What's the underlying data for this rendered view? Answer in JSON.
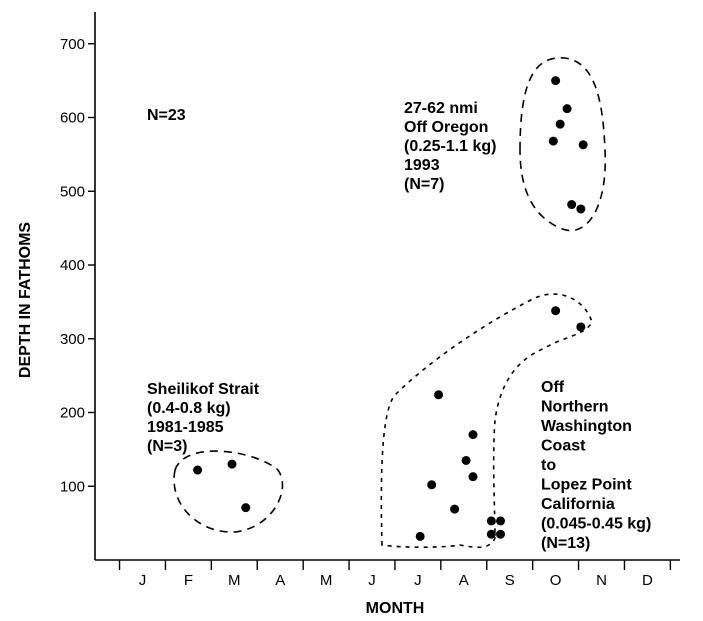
{
  "chart_data": {
    "type": "scatter",
    "title": "",
    "xlabel": "MONTH",
    "ylabel": "DEPTH IN FATHOMS",
    "x_categories": [
      "J",
      "F",
      "M",
      "A",
      "M",
      "J",
      "J",
      "A",
      "S",
      "O",
      "N",
      "D"
    ],
    "ylim": [
      0,
      720
    ],
    "yticks": [
      100,
      200,
      300,
      400,
      500,
      600,
      700
    ],
    "grid": false,
    "legend": "none",
    "count_note": "N=23",
    "series": [
      {
        "label_lines": [
          "Sheilikof Strait",
          "(0.4-0.8 kg)",
          "1981-1985",
          "(N=3)"
        ],
        "points": [
          {
            "month": 2.2,
            "depth": 122
          },
          {
            "month": 2.95,
            "depth": 130
          },
          {
            "month": 3.25,
            "depth": 71
          }
        ]
      },
      {
        "label_lines": [
          "Off",
          "Northern",
          "Washington",
          "Coast",
          "to",
          "Lopez Point",
          "California",
          "(0.045-0.45 kg)",
          "(N=13)"
        ],
        "points": [
          {
            "month": 7.45,
            "depth": 224
          },
          {
            "month": 7.3,
            "depth": 102
          },
          {
            "month": 7.05,
            "depth": 32
          },
          {
            "month": 7.8,
            "depth": 69
          },
          {
            "month": 8.2,
            "depth": 170
          },
          {
            "month": 8.05,
            "depth": 135
          },
          {
            "month": 8.2,
            "depth": 113
          },
          {
            "month": 8.6,
            "depth": 53
          },
          {
            "month": 8.8,
            "depth": 53
          },
          {
            "month": 8.6,
            "depth": 35
          },
          {
            "month": 8.8,
            "depth": 35
          },
          {
            "month": 10.0,
            "depth": 338
          },
          {
            "month": 10.55,
            "depth": 316
          }
        ]
      },
      {
        "label_lines": [
          "27-62 nmi",
          "Off Oregon",
          "(0.25-1.1 kg)",
          "1993",
          "(N=7)"
        ],
        "points": [
          {
            "month": 10.0,
            "depth": 650
          },
          {
            "month": 10.25,
            "depth": 612
          },
          {
            "month": 10.1,
            "depth": 591
          },
          {
            "month": 9.95,
            "depth": 568
          },
          {
            "month": 10.6,
            "depth": 563
          },
          {
            "month": 10.35,
            "depth": 482
          },
          {
            "month": 10.55,
            "depth": 476
          }
        ]
      }
    ]
  }
}
